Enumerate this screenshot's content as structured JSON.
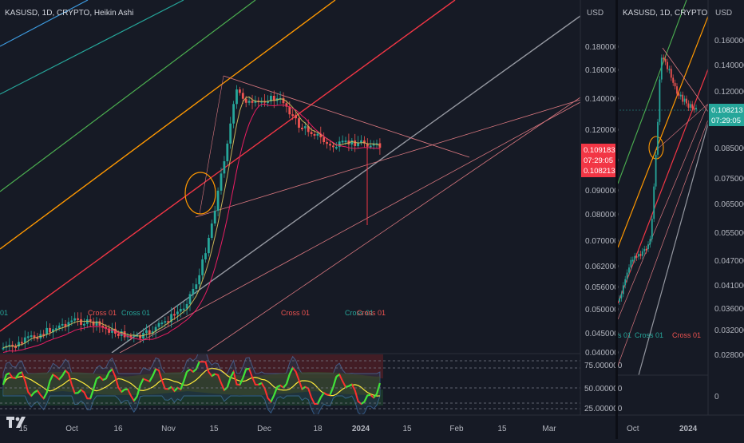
{
  "left_chart": {
    "title": "KASUSD, 1D, CRYPTO, Heikin Ashi",
    "currency": "USD",
    "price_labels": [
      "0.180000",
      "0.160000",
      "0.140000",
      "0.120000",
      "0.100000",
      "0.090000",
      "0.080000",
      "0.070000",
      "0.062000",
      "0.056000",
      "0.050000",
      "0.045000",
      "0.040000"
    ],
    "price_tag_high": "0.109183",
    "countdown": "07:29:05",
    "price_tag_low": "0.108213",
    "osc_labels": [
      "75.000000",
      "50.000000",
      "25.000000"
    ],
    "x_labels": [
      "15",
      "Oct",
      "16",
      "Nov",
      "15",
      "Dec",
      "18",
      "2024",
      "15",
      "Feb",
      "15",
      "Mar"
    ],
    "cross_labels": [
      "01",
      "Cross 01",
      "Cross 01",
      "Cross 01",
      "Cross 01",
      "Cross 01"
    ],
    "colors": {
      "up": "#26a69a",
      "down": "#ef5350",
      "tag": "#f23645"
    }
  },
  "right_chart": {
    "title": "KASUSD, 1D, CRYPTO",
    "currency": "USD",
    "price_labels": [
      "0.160000",
      "0.140000",
      "0.120000",
      "0.100000",
      "0.085000",
      "0.075000",
      "0.065000",
      "0.055000",
      "0.047000",
      "0.041000",
      "0.036000",
      "0.032000",
      "0.028000"
    ],
    "price_tag": "0.108213",
    "countdown": "07:29:05",
    "osc_label": "0",
    "x_labels": [
      "Oct",
      "2024"
    ],
    "cross_labels": [
      "s 01",
      "Cross 01",
      "Cross 01"
    ],
    "colors": {
      "tag": "#26a69a"
    }
  },
  "chart_data": [
    {
      "type": "candlestick",
      "title": "KASUSD, 1D, CRYPTO, Heikin Ashi",
      "ylabel": "USD",
      "ylim": [
        0.04,
        0.18
      ],
      "y_scale": "log",
      "x": [
        "2023-09-09",
        "2023-09-15",
        "2023-09-22",
        "2023-09-29",
        "2023-10-06",
        "2023-10-13",
        "2023-10-20",
        "2023-10-27",
        "2023-11-03",
        "2023-11-08",
        "2023-11-12",
        "2023-11-15",
        "2023-11-20",
        "2023-11-25",
        "2023-11-30",
        "2023-12-05",
        "2023-12-10",
        "2023-12-15",
        "2023-12-20",
        "2023-12-25",
        "2023-12-30",
        "2024-01-03",
        "2024-01-06"
      ],
      "close": [
        0.041,
        0.043,
        0.045,
        0.047,
        0.046,
        0.044,
        0.043,
        0.046,
        0.05,
        0.058,
        0.075,
        0.095,
        0.145,
        0.135,
        0.14,
        0.138,
        0.122,
        0.118,
        0.11,
        0.112,
        0.113,
        0.111,
        0.109
      ]
    },
    {
      "type": "line",
      "title": "Oscillator",
      "ylim": [
        25,
        80
      ],
      "ticks": [
        75,
        50,
        25
      ]
    }
  ]
}
